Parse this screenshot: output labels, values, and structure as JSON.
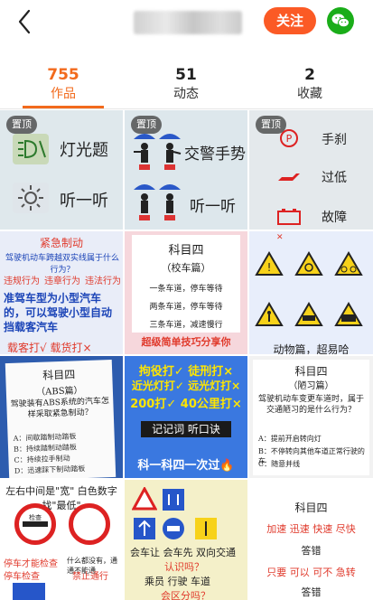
{
  "header": {
    "nickname": "",
    "follow_label": "关注"
  },
  "stats": [
    {
      "num": "755",
      "label": "作品"
    },
    {
      "num": "51",
      "label": "动态"
    },
    {
      "num": "2",
      "label": "收藏"
    }
  ],
  "accent_color": "#f26a1c",
  "pin_label": "置顶",
  "tiles": {
    "lamp": {
      "top": "灯光题",
      "bottom": "听一听"
    },
    "police": {
      "top": "交警手势",
      "bottom": "听一听"
    },
    "dash": {
      "a": "手刹",
      "b": "过低",
      "c": "故障"
    },
    "emergency": {
      "title": "紧急制动",
      "question": "驾驶机动车跨越双实线属于什么行为？",
      "opts": [
        "违规行为",
        "违章行为",
        "违法行为"
      ],
      "rule": "准驾车型为小型汽车的，可以驾驶小型自动挡载客汽车",
      "answer": "载客打√ 载货打×"
    },
    "k4a": {
      "title": "科目四",
      "sub": "（校车篇）",
      "l1": "一条车道，停车等待",
      "l2": "两条车道，停车等待",
      "l3": "三条车道，减速慢行",
      "foot": "超级简单技巧分享你"
    },
    "signs": {
      "cap": "动物篇，超易哈"
    },
    "abs": {
      "title": "科目四",
      "sub": "（ABS篇）",
      "q": "驾驶装有ABS系统的汽车怎样采取紧急制动？",
      "a": "A：间歇踏制动踏板",
      "b": "B：持续踏制动踏板",
      "c": "C：持续拉手制动",
      "d": "D：迅速踩下制动踏板"
    },
    "tricks": {
      "l1": "拘役打✓  徒刑打×",
      "l2": "近光灯打✓ 远光灯打×",
      "l3": "200打✓  40公里打×",
      "bar": "记记词  听口诀",
      "bottom": "科一科四一次过🔥"
    },
    "poor": {
      "title": "科目四",
      "sub": "（陋习篇）",
      "q": "驾驶机动车变更车道时，属于交通陋习的是什么行为？",
      "a": "A：提前开启转向灯",
      "b": "B：不停转向其他车道正常行驶的车",
      "c": "C：随意并线"
    },
    "check": {
      "h": "左右中间是\"宽\" 白色数字找\"最低\"",
      "s1": "检查",
      "l1": "停车才能检查",
      "l2": "禁止通行",
      "l3": "停车检查",
      "note": "什么都没有，通通不能通"
    },
    "yield": {
      "l1": "会车让  会车先  双向交通",
      "l2": "认识吗？",
      "l3": "乘员  行驶  车道",
      "l4": "会区分吗？"
    },
    "fast": {
      "title": "科目四",
      "l1": "加速 迅速 快速 尽快",
      "l2": "答错",
      "l3": "只要 可以 可不 急转",
      "l4": "答错"
    }
  }
}
